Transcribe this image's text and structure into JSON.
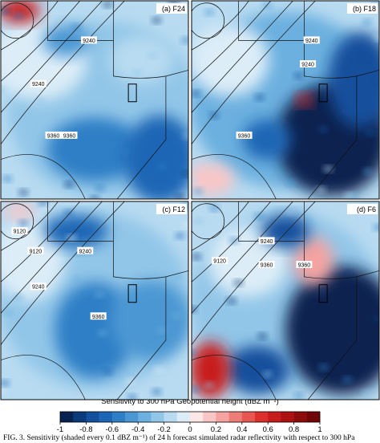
{
  "panels": [
    {
      "label": "(a) F24",
      "contour_labels": [
        "9240",
        "9360",
        "9360",
        "9240"
      ]
    },
    {
      "label": "(b) F18",
      "contour_labels": [
        "9240",
        "9240",
        "9360"
      ]
    },
    {
      "label": "(c) F12",
      "contour_labels": [
        "9120",
        "9120",
        "9240",
        "9240",
        "9360"
      ]
    },
    {
      "label": "(d) F6",
      "contour_labels": [
        "9240",
        "9120",
        "9360",
        "9360"
      ]
    }
  ],
  "colorbar": {
    "title": "Sensitivity to 300 hPa Geopotential height (dBZ m⁻¹)",
    "ticks": [
      -1,
      -0.8,
      -0.6,
      -0.4,
      -0.2,
      0,
      0.2,
      0.4,
      0.6,
      0.8,
      1
    ],
    "colors": [
      "#08234f",
      "#0b3a7a",
      "#124f9c",
      "#1d66b5",
      "#2f7fc6",
      "#4b97d3",
      "#6cb0df",
      "#92c6e8",
      "#b8dbf1",
      "#dcedf8",
      "#fde6e6",
      "#f9c6c6",
      "#f4a3a0",
      "#ee7d77",
      "#e75650",
      "#dd2f2c",
      "#c81c1c",
      "#ac1212",
      "#8e0b0b",
      "#700606"
    ]
  },
  "caption": "FIG. 3. Sensitivity (shaded every 0.1 dBZ m⁻¹) of 24 h forecast simulated radar reflectivity with respect to 300 hPa"
}
